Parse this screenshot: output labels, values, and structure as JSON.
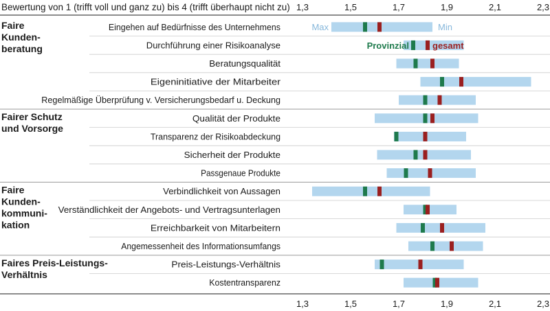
{
  "chart_data": {
    "type": "bar",
    "subtype": "range-with-markers",
    "title": "Bewertung von 1 (trifft voll und ganz zu) bis 4 (trifft überhaupt nicht zu)",
    "xlim": [
      1.3,
      2.3
    ],
    "ticks": [
      "1,3",
      "1,5",
      "1,7",
      "1,9",
      "2,1",
      "2,3"
    ],
    "tick_values": [
      1.3,
      1.5,
      1.7,
      1.9,
      2.1,
      2.3
    ],
    "legend": {
      "max": "Max",
      "min": "Min",
      "provinzial": "Provinzial",
      "gesamt": "gesamt"
    },
    "colors": {
      "range": "#b3d6ee",
      "provinzial": "#1e7a4c",
      "gesamt": "#9a1f1f",
      "legend_range_text": "#86b7db",
      "grid": "#cccccc"
    },
    "groups": [
      {
        "label_lines": [
          "Faire",
          "Kunden-",
          "beratung"
        ],
        "rows": [
          0,
          4
        ]
      },
      {
        "label_lines": [
          "Fairer Schutz",
          "und Vorsorge"
        ],
        "rows": [
          5,
          8
        ]
      },
      {
        "label_lines": [
          "Faire",
          "Kunden-",
          "kommuni-",
          "kation"
        ],
        "rows": [
          9,
          12
        ]
      },
      {
        "label_lines": [
          "Faires Preis-Leistungs-",
          "Verhältnis"
        ],
        "rows": [
          13,
          14
        ]
      }
    ],
    "rows": [
      {
        "label": "Eingehen auf Bedürfnisse des Unternehmens",
        "min": 1.42,
        "max": 1.84,
        "provinzial": 1.56,
        "gesamt": 1.62
      },
      {
        "label": "Durchführung einer Risikoanalyse",
        "min": 1.72,
        "max": 1.97,
        "provinzial": 1.76,
        "gesamt": 1.82
      },
      {
        "label": "Beratungsqualität",
        "min": 1.69,
        "max": 1.95,
        "provinzial": 1.77,
        "gesamt": 1.84
      },
      {
        "label": "Eigeninitiative der Mitarbeiter",
        "min": 1.79,
        "max": 2.25,
        "provinzial": 1.88,
        "gesamt": 1.96
      },
      {
        "label": "Regelmäßige Überprüfung v. Versicherungsbedarf u. Deckung",
        "min": 1.7,
        "max": 2.02,
        "provinzial": 1.81,
        "gesamt": 1.87
      },
      {
        "label": "Qualität der Produkte",
        "min": 1.6,
        "max": 2.03,
        "provinzial": 1.81,
        "gesamt": 1.84
      },
      {
        "label": "Transparenz der Risikoabdeckung",
        "min": 1.68,
        "max": 1.98,
        "provinzial": 1.69,
        "gesamt": 1.81
      },
      {
        "label": "Sicherheit der Produkte",
        "min": 1.61,
        "max": 2.0,
        "provinzial": 1.77,
        "gesamt": 1.81
      },
      {
        "label": "Passgenaue Produkte",
        "min": 1.65,
        "max": 2.02,
        "provinzial": 1.73,
        "gesamt": 1.83
      },
      {
        "label": "Verbindlichkeit von Aussagen",
        "min": 1.34,
        "max": 1.83,
        "provinzial": 1.56,
        "gesamt": 1.62
      },
      {
        "label": "Verständlichkeit der Angebots- und Vertragsunterlagen",
        "min": 1.72,
        "max": 1.94,
        "provinzial": 1.81,
        "gesamt": 1.82
      },
      {
        "label": "Erreichbarkeit von Mitarbeitern",
        "min": 1.69,
        "max": 2.06,
        "provinzial": 1.8,
        "gesamt": 1.88
      },
      {
        "label": "Angemessenheit des Informationsumfangs",
        "min": 1.74,
        "max": 2.05,
        "provinzial": 1.84,
        "gesamt": 1.92
      },
      {
        "label": "Preis-Leistungs-Verhältnis",
        "min": 1.6,
        "max": 1.97,
        "provinzial": 1.63,
        "gesamt": 1.79
      },
      {
        "label": "Kostentransparenz",
        "min": 1.72,
        "max": 2.03,
        "provinzial": 1.85,
        "gesamt": 1.86
      }
    ]
  }
}
